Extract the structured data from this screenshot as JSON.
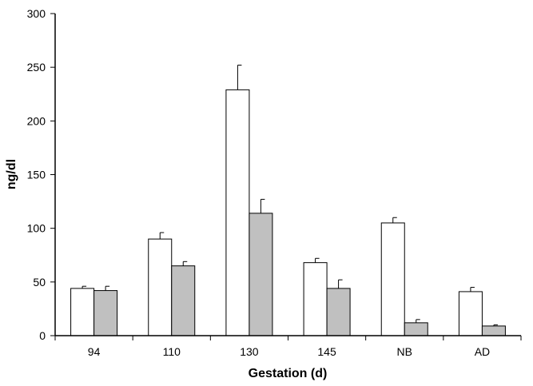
{
  "chart_data": {
    "type": "bar",
    "title": "",
    "xlabel": "Gestation (d)",
    "ylabel": "ng/dl",
    "ylim": [
      0,
      300
    ],
    "yticks": [
      0,
      50,
      100,
      150,
      200,
      250,
      300
    ],
    "grid": false,
    "legend": "none",
    "categories": [
      "94",
      "110",
      "130",
      "145",
      "NB",
      "AD"
    ],
    "series": [
      {
        "values": [
          44,
          90,
          229,
          68,
          105,
          41
        ],
        "errors": [
          2,
          6,
          23,
          4,
          5,
          4
        ],
        "color": "#ffffff"
      },
      {
        "values": [
          42,
          65,
          114,
          44,
          12,
          9
        ],
        "errors": [
          4,
          4,
          13,
          8,
          3,
          1
        ],
        "color": "#c0c0c0"
      }
    ]
  }
}
